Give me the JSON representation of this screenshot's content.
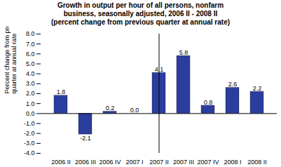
{
  "chart_data": {
    "type": "bar",
    "title": "Growth in output per hour of all persons, nonfarm\nbusiness, seasonally adjusted, 2006 II - 2008 II\n(percent change from previous quarter at annual rate)",
    "ylabel": "Percent change from previous\nquarter at annual rate",
    "categories": [
      "2006 II",
      "2006 III",
      "2006 IV",
      "2007 I",
      "2007 II",
      "2007 III",
      "2007 IV",
      "2008 I",
      "2008 II"
    ],
    "values": [
      1.8,
      -2.1,
      0.2,
      0.0,
      4.1,
      5.8,
      0.8,
      2.6,
      2.2
    ],
    "value_labels": [
      "1.8",
      "-2.1",
      "0.2",
      "0.0",
      "4.1",
      "5.8",
      "0.8",
      "2.6",
      "2.2"
    ],
    "data_labels": true,
    "color": "#2B3E9E",
    "ylim": [
      -4.0,
      8.0
    ],
    "yticks": [
      {
        "value": -4.0,
        "label": "-4.0"
      },
      {
        "value": -3.0,
        "label": "-3.0"
      },
      {
        "value": -2.0,
        "label": "-2.0"
      },
      {
        "value": -1.0,
        "label": "-1.0"
      },
      {
        "value": 0.0,
        "label": "0.0"
      },
      {
        "value": 1.0,
        "label": "1.0"
      },
      {
        "value": 2.0,
        "label": "2.0"
      },
      {
        "value": 3.0,
        "label": "3.0"
      },
      {
        "value": 4.0,
        "label": "4.0"
      },
      {
        "value": 5.0,
        "label": "5.0"
      },
      {
        "value": 6.0,
        "label": "6.0"
      },
      {
        "value": 7.0,
        "label": "7.0"
      },
      {
        "value": 8.0,
        "label": "8.0"
      }
    ],
    "grid": false
  }
}
